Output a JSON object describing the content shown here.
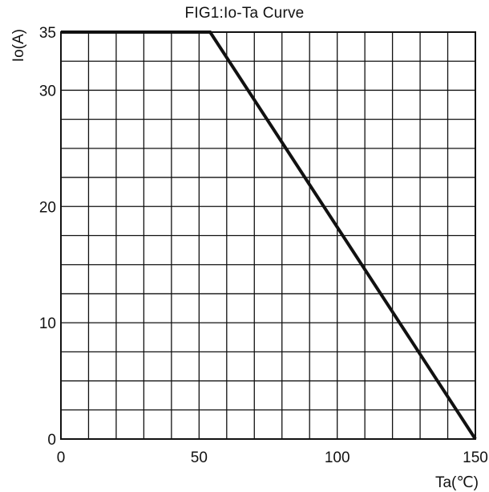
{
  "chart_data": {
    "type": "line",
    "title": "FIG1:Io-Ta Curve",
    "xlabel": "Ta(℃)",
    "ylabel": "Io(A)",
    "xlim": [
      0,
      150
    ],
    "ylim": [
      0,
      35
    ],
    "xticks": [
      0,
      50,
      100,
      150
    ],
    "yticks": [
      0,
      10,
      20,
      30,
      35
    ],
    "grid": true,
    "grid_step_x": 10,
    "grid_step_y": 2.5,
    "line_color": "#111111",
    "grid_color": "#111111",
    "series": [
      {
        "x": [
          0,
          54,
          150
        ],
        "y": [
          35,
          35,
          0
        ]
      }
    ]
  }
}
